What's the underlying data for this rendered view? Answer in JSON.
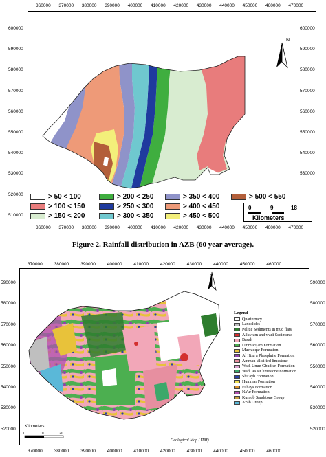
{
  "figure1": {
    "caption": "Figure 2. Rainfall distribution in AZB (60 year average).",
    "x_ticks": [
      "360000",
      "370000",
      "380000",
      "390000",
      "400000",
      "410000",
      "420000",
      "430000",
      "440000",
      "450000",
      "460000",
      "470000"
    ],
    "y_ticks": [
      "600000",
      "590000",
      "580000",
      "570000",
      "560000",
      "550000",
      "540000",
      "530000",
      "520000",
      "510000"
    ],
    "north_label": "N",
    "scale_ticks": [
      "0",
      "9",
      "18"
    ],
    "scale_unit": "Kilometers",
    "legend": [
      {
        "label": "> 50 < 100",
        "color": "#ffffff"
      },
      {
        "label": "> 100 < 150",
        "color": "#e87c7c"
      },
      {
        "label": "> 150 < 200",
        "color": "#d8ecd0"
      },
      {
        "label": "> 200 < 250",
        "color": "#3fae3f"
      },
      {
        "label": "> 250 < 300",
        "color": "#1f3a9e"
      },
      {
        "label": "> 300 < 350",
        "color": "#6fc8cf"
      },
      {
        "label": "> 350 < 400",
        "color": "#8f93c9"
      },
      {
        "label": "> 400 < 450",
        "color": "#ee9a78"
      },
      {
        "label": "> 450 < 500",
        "color": "#f3ef7a"
      },
      {
        "label": "> 500 < 550",
        "color": "#b35f3a"
      }
    ]
  },
  "figure2": {
    "x_ticks": [
      "370000",
      "380000",
      "390000",
      "400000",
      "410000",
      "420000",
      "430000",
      "440000",
      "450000",
      "460000"
    ],
    "y_ticks": [
      "590000",
      "580000",
      "570000",
      "560000",
      "550000",
      "540000",
      "530000",
      "520000"
    ],
    "north_label": "N",
    "legend_title": "Legend",
    "legend": [
      {
        "label": "Quarternary",
        "color": "#ffffff"
      },
      {
        "label": "Landslides",
        "color": "#bfbfbf"
      },
      {
        "label": "Pelitic Sediments in mud flats",
        "color": "#2e7d2e"
      },
      {
        "label": "Alluvium and wadi Sediments",
        "color": "#d32f2f"
      },
      {
        "label": "Basalt",
        "color": "#f2a7b8"
      },
      {
        "label": "Umm Rijam Formation",
        "color": "#4caf50"
      },
      {
        "label": "Muwaqqar Formation",
        "color": "#e8c23a"
      },
      {
        "label": "Al Hisa a Phosphrite Formation",
        "color": "#8e44ad"
      },
      {
        "label": "Amman silicified limestone",
        "color": "#e78fa0"
      },
      {
        "label": "Wadi Umm Ghudran Formation",
        "color": "#d9a0d0"
      },
      {
        "label": "Wadi As sir limestone Formation",
        "color": "#3da86a"
      },
      {
        "label": "Shu'ayb Formation",
        "color": "#2b3fa8"
      },
      {
        "label": "Hummar Formation",
        "color": "#f0e050"
      },
      {
        "label": "Fuhays Formation",
        "color": "#d9902a"
      },
      {
        "label": "Na'ur Formation",
        "color": "#b04fb0"
      },
      {
        "label": "Kurnob Sandstone Group",
        "color": "#c8a040"
      },
      {
        "label": "Azab Group",
        "color": "#5ab8d8"
      }
    ],
    "scale_title": "Kilometers",
    "scale_ticks": [
      "0",
      "10",
      "20"
    ],
    "credit": "Geological Map (JTM)"
  }
}
